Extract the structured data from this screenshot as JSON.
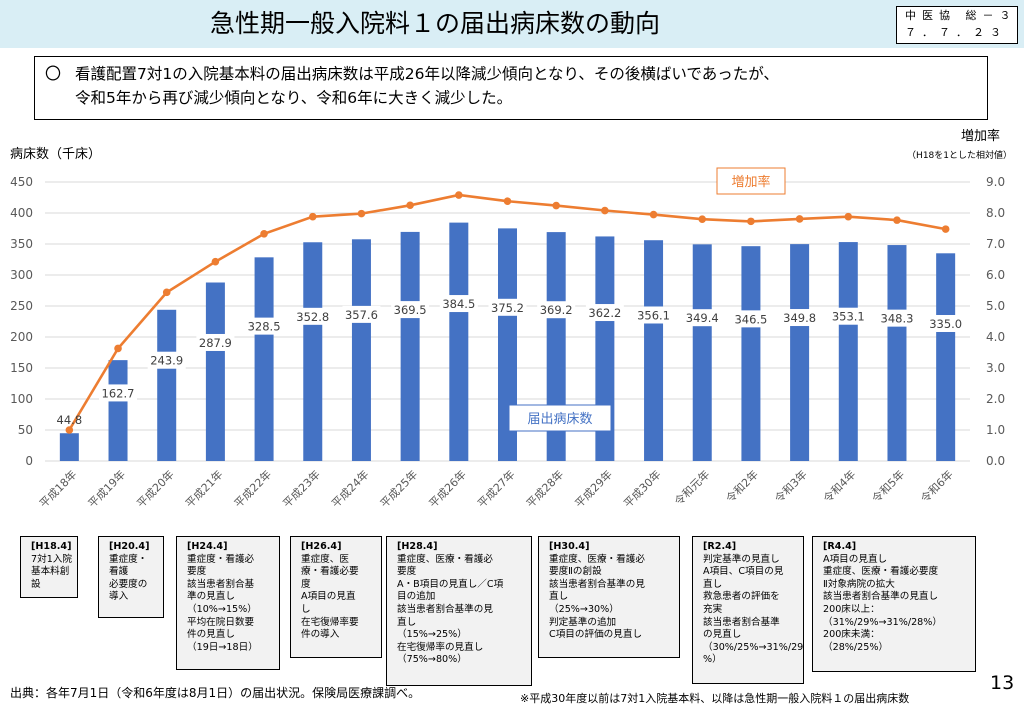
{
  "header": {
    "title": "急性期一般入院料１の届出病床数の動向",
    "code_line1": "中医協 総－３",
    "code_line2": "７．７．２３"
  },
  "summary": {
    "bullet": "〇",
    "line1": "看護配置7対1の入院基本料の届出病床数は平成26年以降減少傾向となり、その後横ばいであったが、",
    "line2": "令和5年から再び減少傾向となり、令和6年に大きく減少した。"
  },
  "colors": {
    "bar": "#4472c4",
    "line": "#ed7d31",
    "title_bg": "#d9eef5",
    "box_bg": "#f2f2f2"
  },
  "chart_data": {
    "type": "bar",
    "categories": [
      "平成18年",
      "平成19年",
      "平成20年",
      "平成21年",
      "平成22年",
      "平成23年",
      "平成24年",
      "平成25年",
      "平成26年",
      "平成27年",
      "平成28年",
      "平成29年",
      "平成30年",
      "令和元年",
      "令和2年",
      "令和3年",
      "令和4年",
      "令和5年",
      "令和6年"
    ],
    "series": [
      {
        "name": "届出病床数",
        "type": "bar",
        "axis": "left",
        "values": [
          44.8,
          162.7,
          243.9,
          287.9,
          328.5,
          352.8,
          357.6,
          369.5,
          384.5,
          375.2,
          369.2,
          362.2,
          356.1,
          349.4,
          346.5,
          349.8,
          353.1,
          348.3,
          335.0
        ],
        "labels": [
          "44.8",
          "162.7",
          "243.9",
          "287.9",
          "328.5",
          "352.8",
          "357.6",
          "369.5",
          "384.5",
          "375.2",
          "369.2",
          "362.2",
          "356.1",
          "349.4",
          "346.5",
          "349.8",
          "353.1",
          "348.3",
          "335.0"
        ]
      },
      {
        "name": "増加率",
        "type": "line",
        "axis": "right",
        "values": [
          1.0,
          3.63,
          5.44,
          6.43,
          7.33,
          7.88,
          7.98,
          8.25,
          8.58,
          8.38,
          8.24,
          8.08,
          7.95,
          7.8,
          7.73,
          7.81,
          7.88,
          7.77,
          7.48
        ]
      }
    ],
    "ylabel": "病床数（千床）",
    "y2label": "増加率",
    "y2sublabel": "（H18を1とした相対値）",
    "ylim": [
      0,
      450
    ],
    "y2lim": [
      0.0,
      9.0
    ],
    "yticks": [
      "0",
      "50",
      "100",
      "150",
      "200",
      "250",
      "300",
      "350",
      "400",
      "450"
    ],
    "y2ticks": [
      "0.0",
      "1.0",
      "2.0",
      "3.0",
      "4.0",
      "5.0",
      "6.0",
      "7.0",
      "8.0",
      "9.0"
    ],
    "grid": true,
    "legend_labels": {
      "line": "増加率",
      "bar": "届出病床数"
    }
  },
  "revision_boxes": [
    {
      "header": "[H18.4]",
      "lines": [
        "7対1入院",
        "基本料創",
        "設"
      ]
    },
    {
      "header": "[H20.4]",
      "lines": [
        "重症度・",
        "看護",
        "必要度の",
        "導入"
      ]
    },
    {
      "header": "[H24.4]",
      "lines": [
        "重症度・看護必",
        "要度",
        "該当患者割合基",
        "準の見直し",
        "（10%→15%）",
        "平均在院日数要",
        "件の見直し",
        "（19日→18日）"
      ]
    },
    {
      "header": "[H26.4]",
      "lines": [
        "重症度、医",
        "療・看護必要",
        "度",
        "A項目の見直",
        "し",
        "在宅復帰率要",
        "件の導入"
      ]
    },
    {
      "header": "[H28.4]",
      "lines": [
        "重症度、医療・看護必",
        "要度",
        "A・B項目の見直し／C項",
        "目の追加",
        "該当患者割合基準の見",
        "直し",
        "（15%→25%）",
        "在宅復帰率の見直し",
        "（75%→80%）"
      ]
    },
    {
      "header": "[H30.4]",
      "lines": [
        "重症度、医療・看護必",
        "要度Ⅱの創設",
        "該当患者割合基準の見",
        "直し",
        "（25%→30%）",
        "判定基準の追加",
        "C項目の評価の見直し"
      ]
    },
    {
      "header": "[R2.4]",
      "lines": [
        "判定基準の見直し",
        "A項目、C項目の見",
        "直し",
        "救急患者の評価を",
        "充実",
        "該当患者割合基準",
        "の見直し",
        "（30%/25%→31%/29",
        "%）"
      ]
    },
    {
      "header": "[R4.4]",
      "lines": [
        "A項目の見直し",
        "重症度、医療・看護必要度",
        "Ⅱ対象病院の拡大",
        "該当患者割合基準の見直し",
        "200床以上：",
        "（31%/29%→31%/28%）",
        "200床未満：",
        "（28%/25%）"
      ]
    }
  ],
  "footer": {
    "source": "出典：各年7月1日（令和6年度は8月1日）の届出状況。保険局医療課調べ。",
    "note": "※平成30年度以前は7対1入院基本料、以降は急性期一般入院料１の届出病床数",
    "page": "13"
  }
}
